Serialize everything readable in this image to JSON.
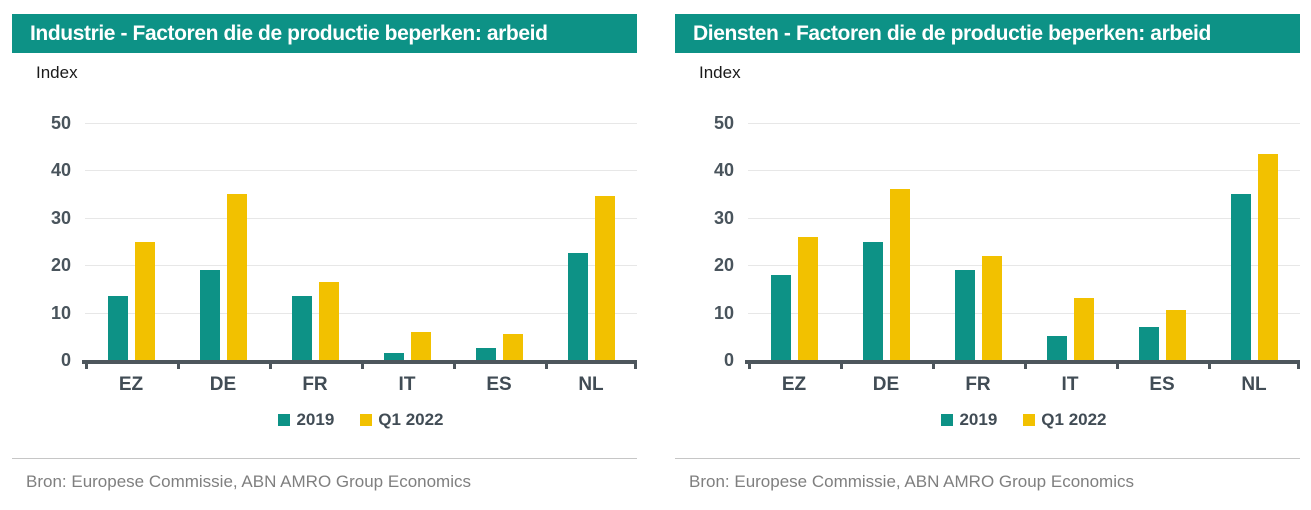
{
  "colors": {
    "teal": "#0d9286",
    "yellow": "#f2c100",
    "axis": "#4d565c",
    "gridline": "#e7e7e7",
    "tick_label": "#49545c",
    "category_label": "#414c55",
    "source_text": "#7f7f7f",
    "title_background": "#0d9286",
    "title_text": "#ffffff"
  },
  "chart_data": [
    {
      "type": "bar",
      "title": "Industrie - Factoren die de productie beperken: arbeid",
      "ylabel": "Index",
      "categories": [
        "EZ",
        "DE",
        "FR",
        "IT",
        "ES",
        "NL"
      ],
      "series": [
        {
          "name": "2019",
          "color": "#0d9286",
          "values": [
            13.5,
            19,
            13.5,
            1.5,
            2.5,
            22.5
          ]
        },
        {
          "name": "Q1 2022",
          "color": "#f2c100",
          "values": [
            25,
            35,
            16.5,
            6,
            5.5,
            34.5
          ]
        }
      ],
      "ylim": [
        0,
        50
      ],
      "ytick_step": 10,
      "grid": true,
      "legend_position": "bottom",
      "source": "Bron: Europese Commissie, ABN AMRO Group Economics"
    },
    {
      "type": "bar",
      "title": "Diensten - Factoren die de productie beperken: arbeid",
      "ylabel": "Index",
      "categories": [
        "EZ",
        "DE",
        "FR",
        "IT",
        "ES",
        "NL"
      ],
      "series": [
        {
          "name": "2019",
          "color": "#0d9286",
          "values": [
            18,
            25,
            19,
            5,
            7,
            35
          ]
        },
        {
          "name": "Q1 2022",
          "color": "#f2c100",
          "values": [
            26,
            36,
            22,
            13,
            10.5,
            43.5
          ]
        }
      ],
      "ylim": [
        0,
        50
      ],
      "ytick_step": 10,
      "grid": true,
      "legend_position": "bottom",
      "source": "Bron: Europese Commissie, ABN AMRO Group Economics"
    }
  ]
}
